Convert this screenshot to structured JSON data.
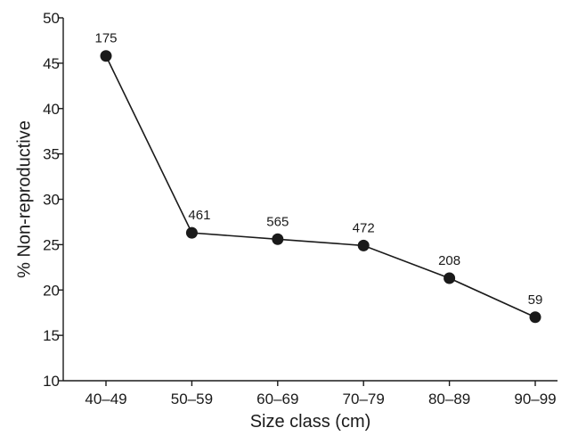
{
  "chart_data": {
    "type": "line",
    "xlabel": "Size class (cm)",
    "ylabel": "% Non-reproductive",
    "ylim": [
      10,
      50
    ],
    "yticks": [
      10,
      15,
      20,
      25,
      30,
      35,
      40,
      45,
      50
    ],
    "grid": false,
    "categories": [
      "40–49",
      "50–59",
      "60–69",
      "70–79",
      "80–89",
      "90–99"
    ],
    "series": [
      {
        "values": [
          45.8,
          26.3,
          25.6,
          24.9,
          21.3,
          17.0
        ],
        "labels": [
          "175",
          "461",
          "565",
          "472",
          "208",
          "59"
        ]
      }
    ]
  }
}
